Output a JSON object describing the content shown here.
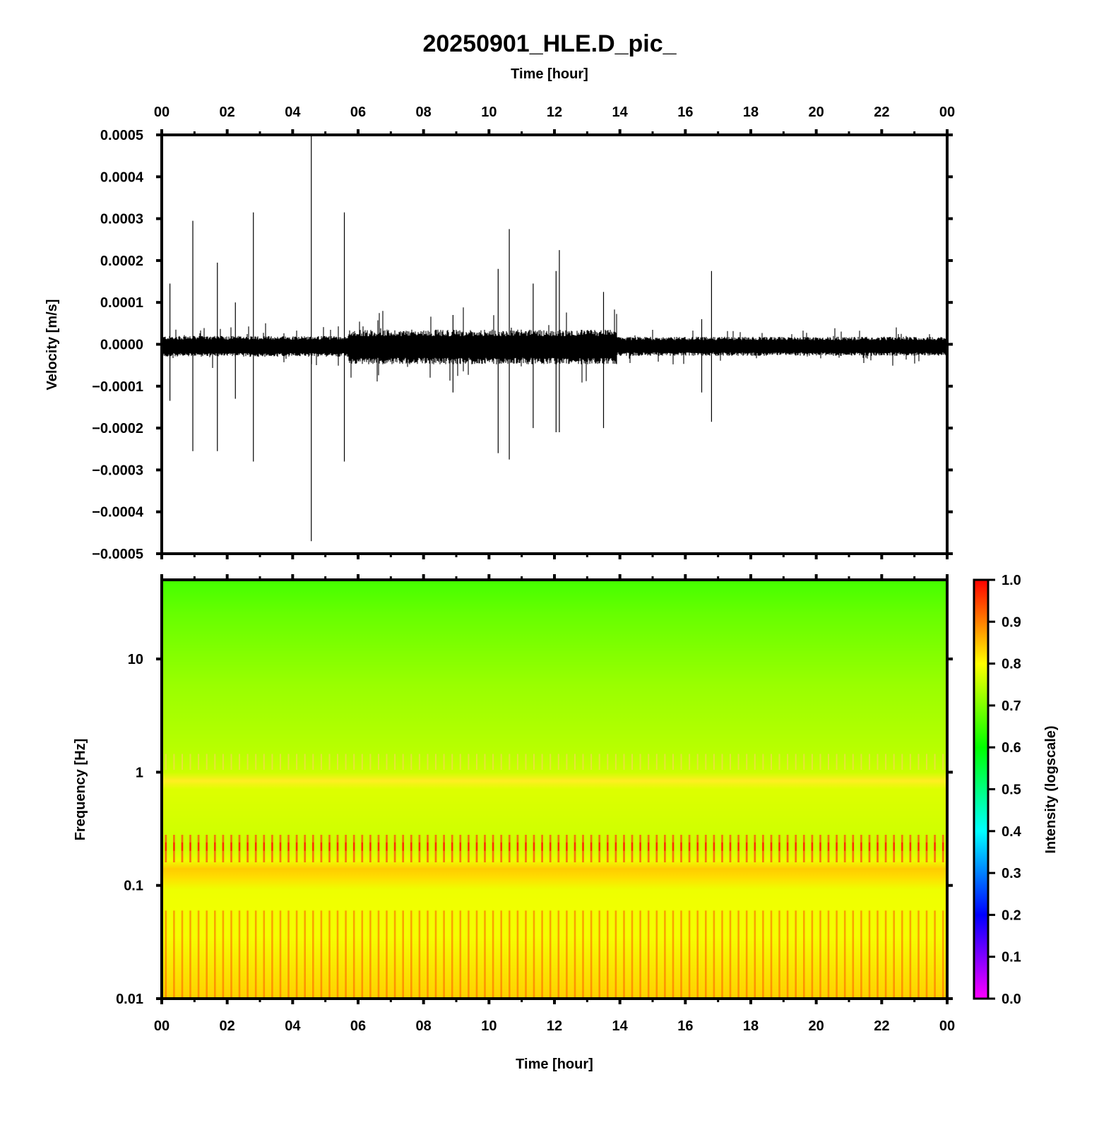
{
  "chart_data": [
    {
      "type": "line",
      "title": "20250901_HLE.D_pic_",
      "top_xlabel": "Time [hour]",
      "ylabel": "Velocity [m/s]",
      "x_ticks": [
        "00",
        "02",
        "04",
        "06",
        "08",
        "10",
        "12",
        "14",
        "16",
        "18",
        "20",
        "22",
        "00"
      ],
      "x_range_hours": [
        0,
        24
      ],
      "y_ticks": [
        "0.0005",
        "0.0004",
        "0.0003",
        "0.0002",
        "0.0001",
        "0.0000",
        "−0.0001",
        "−0.0002",
        "−0.0003",
        "−0.0004",
        "−0.0005"
      ],
      "ylim": [
        -0.0005,
        0.0005
      ],
      "grid": false,
      "color": "#000000",
      "noise_envelope": [
        {
          "start_hour": 0.0,
          "end_hour": 5.7,
          "half_amplitude": 2e-05
        },
        {
          "start_hour": 5.7,
          "end_hour": 13.9,
          "half_amplitude": 3.5e-05
        },
        {
          "start_hour": 13.9,
          "end_hour": 24.0,
          "half_amplitude": 1.8e-05
        }
      ],
      "spikes": [
        {
          "hour": 0.25,
          "max": 0.000145,
          "min": -0.000135
        },
        {
          "hour": 0.95,
          "max": 0.000295,
          "min": -0.000255
        },
        {
          "hour": 1.7,
          "max": 0.000195,
          "min": -0.000255
        },
        {
          "hour": 2.25,
          "max": 0.0001,
          "min": -0.00013
        },
        {
          "hour": 2.8,
          "max": 0.000315,
          "min": -0.00028
        },
        {
          "hour": 4.57,
          "max": 0.0005,
          "min": -0.00047
        },
        {
          "hour": 5.58,
          "max": 0.000315,
          "min": -0.00028
        },
        {
          "hour": 8.9,
          "max": 7e-05,
          "min": -0.000115
        },
        {
          "hour": 10.28,
          "max": 0.00018,
          "min": -0.00026
        },
        {
          "hour": 10.62,
          "max": 0.000275,
          "min": -0.000275
        },
        {
          "hour": 11.35,
          "max": 0.000145,
          "min": -0.0002
        },
        {
          "hour": 12.05,
          "max": 0.000175,
          "min": -0.00021
        },
        {
          "hour": 12.15,
          "max": 0.000225,
          "min": -0.00021
        },
        {
          "hour": 13.5,
          "max": 0.000125,
          "min": -0.0002
        },
        {
          "hour": 16.5,
          "max": 6e-05,
          "min": -0.000115
        },
        {
          "hour": 16.8,
          "max": 0.000175,
          "min": -0.000185
        }
      ]
    },
    {
      "type": "heatmap",
      "xlabel": "Time [hour]",
      "ylabel": "Frequency [Hz]",
      "y_scale": "log",
      "x_ticks": [
        "00",
        "02",
        "04",
        "06",
        "08",
        "10",
        "12",
        "14",
        "16",
        "18",
        "20",
        "22",
        "00"
      ],
      "y_ticks": [
        "10",
        "1",
        "0.1",
        "0.01"
      ],
      "ylim_hz": [
        0.01,
        50
      ],
      "colorbar": {
        "label": "Intensity (logscale)",
        "ticks": [
          "1.0",
          "0.9",
          "0.8",
          "0.7",
          "0.6",
          "0.5",
          "0.4",
          "0.3",
          "0.2",
          "0.1",
          "0.0"
        ],
        "range": [
          0,
          1
        ],
        "colors": [
          "#ff00ff",
          "#8000ff",
          "#0000ff",
          "#0080ff",
          "#00ffff",
          "#00ff80",
          "#00ff00",
          "#80ff00",
          "#ffff00",
          "#ff8000",
          "#ff0000"
        ]
      },
      "frequency_profile": [
        {
          "hz": 50,
          "intensity": 0.66
        },
        {
          "hz": 20,
          "intensity": 0.7
        },
        {
          "hz": 8,
          "intensity": 0.73
        },
        {
          "hz": 3,
          "intensity": 0.76
        },
        {
          "hz": 1.4,
          "intensity": 0.77
        },
        {
          "hz": 1.2,
          "intensity": 0.81
        },
        {
          "hz": 1.0,
          "intensity": 0.77
        },
        {
          "hz": 0.5,
          "intensity": 0.77
        },
        {
          "hz": 0.28,
          "intensity": 0.8
        },
        {
          "hz": 0.22,
          "intensity": 0.86
        },
        {
          "hz": 0.16,
          "intensity": 0.8
        },
        {
          "hz": 0.08,
          "intensity": 0.79
        },
        {
          "hz": 0.03,
          "intensity": 0.82
        },
        {
          "hz": 0.01,
          "intensity": 0.86
        }
      ],
      "stripe_period_hours": 0.25
    }
  ]
}
